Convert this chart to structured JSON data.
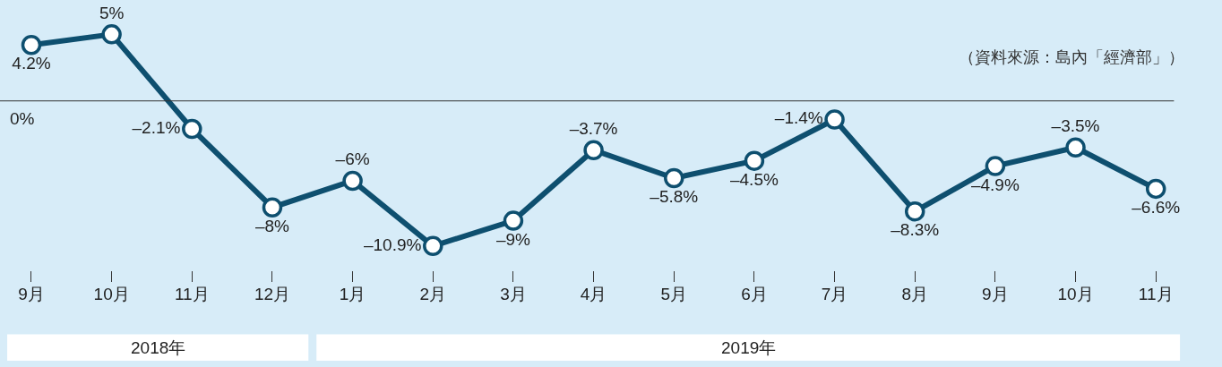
{
  "chart_data": {
    "type": "line",
    "categories": [
      "9月",
      "10月",
      "11月",
      "12月",
      "1月",
      "2月",
      "3月",
      "4月",
      "5月",
      "6月",
      "7月",
      "8月",
      "9月",
      "10月",
      "11月"
    ],
    "series": [
      {
        "color": "#0e4f6f",
        "values": [
          4.2,
          5,
          -2.1,
          -8,
          -6,
          -10.9,
          -9,
          -3.7,
          -5.8,
          -4.5,
          -1.4,
          -8.3,
          -4.9,
          -3.5,
          -6.6
        ],
        "value_labels": [
          "4.2%",
          "5%",
          "–2.1%",
          "–8%",
          "–6%",
          "–10.9%",
          "–9%",
          "–3.7%",
          "–5.8%",
          "–4.5%",
          "–1.4%",
          "–8.3%",
          "–4.9%",
          "–3.5%",
          "–6.6%"
        ]
      }
    ],
    "data_labels": true,
    "marker": "circle",
    "line_style": "solid",
    "grid": false,
    "tick_labels": "x",
    "ref_lines": [
      {
        "axis": "y",
        "value": 0,
        "label": "0%",
        "color": "#333333"
      }
    ],
    "annotations": [
      "（資料來源：島內「經濟部」）",
      "2018年",
      "2019年"
    ]
  }
}
